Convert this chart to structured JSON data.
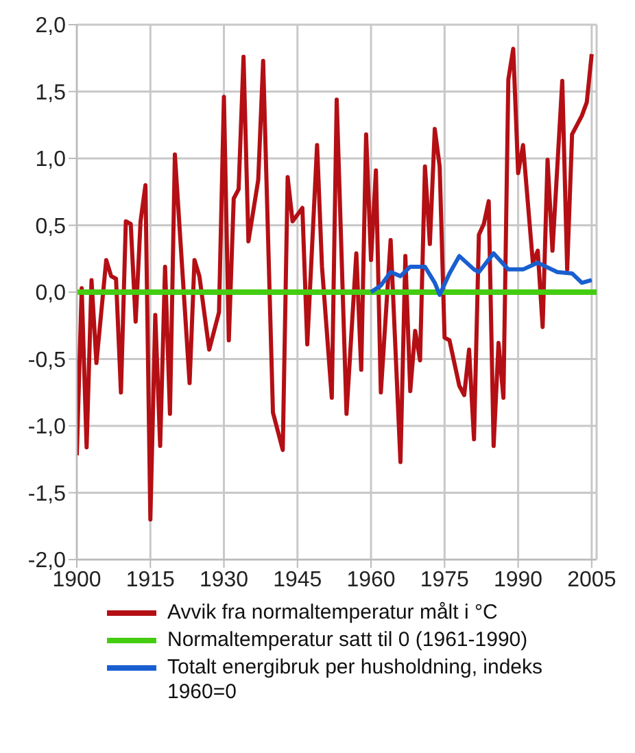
{
  "chart_data": {
    "type": "line",
    "xlim": [
      1900,
      2006
    ],
    "xticks": [
      1900,
      1915,
      1930,
      1945,
      1960,
      1975,
      1990,
      2005
    ],
    "ylim": [
      -2,
      2
    ],
    "yticks": [
      {
        "value": -2,
        "label": "-2,0"
      },
      {
        "value": -1.5,
        "label": "-1,5"
      },
      {
        "value": -1,
        "label": "-1,0"
      },
      {
        "value": -0.5,
        "label": "-0,5"
      },
      {
        "value": 0,
        "label": "0,0"
      },
      {
        "value": 0.5,
        "label": "0,5"
      },
      {
        "value": 1,
        "label": "1,0"
      },
      {
        "value": 1.5,
        "label": "1,5"
      },
      {
        "value": 2,
        "label": "2,0"
      }
    ],
    "grid": true,
    "legend": "bottom",
    "marker": "none",
    "line_style": "solid",
    "series": [
      {
        "name": "Avvik fra normaltemperatur målt i °C",
        "color": "#b40f14",
        "x": [
          1900,
          1901,
          1902,
          1903,
          1904,
          1906,
          1907,
          1908,
          1909,
          1910,
          1911,
          1912,
          1913,
          1914,
          1915,
          1916,
          1917,
          1918,
          1919,
          1920,
          1923,
          1924,
          1925,
          1927,
          1929,
          1930,
          1931,
          1932,
          1933,
          1934,
          1935,
          1937,
          1938,
          1940,
          1942,
          1943,
          1944,
          1946,
          1947,
          1949,
          1950,
          1952,
          1953,
          1955,
          1957,
          1958,
          1959,
          1960,
          1961,
          1962,
          1964,
          1966,
          1967,
          1968,
          1969,
          1970,
          1971,
          1972,
          1973,
          1974,
          1975,
          1976,
          1978,
          1979,
          1980,
          1981,
          1982,
          1983,
          1984,
          1985,
          1986,
          1987,
          1988,
          1989,
          1990,
          1991,
          1993,
          1994,
          1995,
          1996,
          1997,
          1999,
          2000,
          2001,
          2003,
          2004,
          2005
        ],
        "values": [
          -1.22,
          0.03,
          -1.16,
          0.09,
          -0.53,
          0.24,
          0.12,
          0.1,
          -0.75,
          0.53,
          0.51,
          -0.22,
          0.53,
          0.8,
          -1.7,
          -0.17,
          -1.15,
          0.19,
          -0.91,
          1.03,
          -0.68,
          0.24,
          0.12,
          -0.43,
          -0.15,
          1.46,
          -0.36,
          0.7,
          0.77,
          1.76,
          0.38,
          0.84,
          1.73,
          -0.9,
          -1.18,
          0.86,
          0.53,
          0.63,
          -0.39,
          1.1,
          0.19,
          -0.79,
          1.44,
          -0.91,
          0.29,
          -0.58,
          1.18,
          0.24,
          0.91,
          -0.75,
          0.39,
          -1.27,
          0.27,
          -0.74,
          -0.29,
          -0.51,
          0.94,
          0.36,
          1.22,
          0.94,
          -0.34,
          -0.36,
          -0.7,
          -0.77,
          -0.43,
          -1.1,
          0.43,
          0.51,
          0.68,
          -1.15,
          -0.38,
          -0.79,
          1.59,
          1.82,
          0.89,
          1.1,
          0.22,
          0.31,
          -0.26,
          0.99,
          0.31,
          1.58,
          0.17,
          1.18,
          1.32,
          1.42,
          1.78
        ]
      },
      {
        "name": "Normaltemperatur satt til 0 (1961-1990)",
        "color": "#44cc11",
        "x": [
          1900,
          2006
        ],
        "values": [
          0,
          0
        ]
      },
      {
        "name": "Totalt energibruk per husholdning, indeks 1960=0",
        "color": "#1a5fd0",
        "x": [
          1960,
          1962,
          1964,
          1966,
          1968,
          1971,
          1973,
          1974,
          1976,
          1978,
          1981,
          1982,
          1985,
          1988,
          1991,
          1994,
          1998,
          2001,
          2003,
          2005
        ],
        "values": [
          0,
          0.05,
          0.15,
          0.12,
          0.19,
          0.19,
          0.07,
          -0.02,
          0.14,
          0.27,
          0.17,
          0.15,
          0.29,
          0.17,
          0.17,
          0.22,
          0.15,
          0.14,
          0.07,
          0.09
        ]
      }
    ]
  }
}
